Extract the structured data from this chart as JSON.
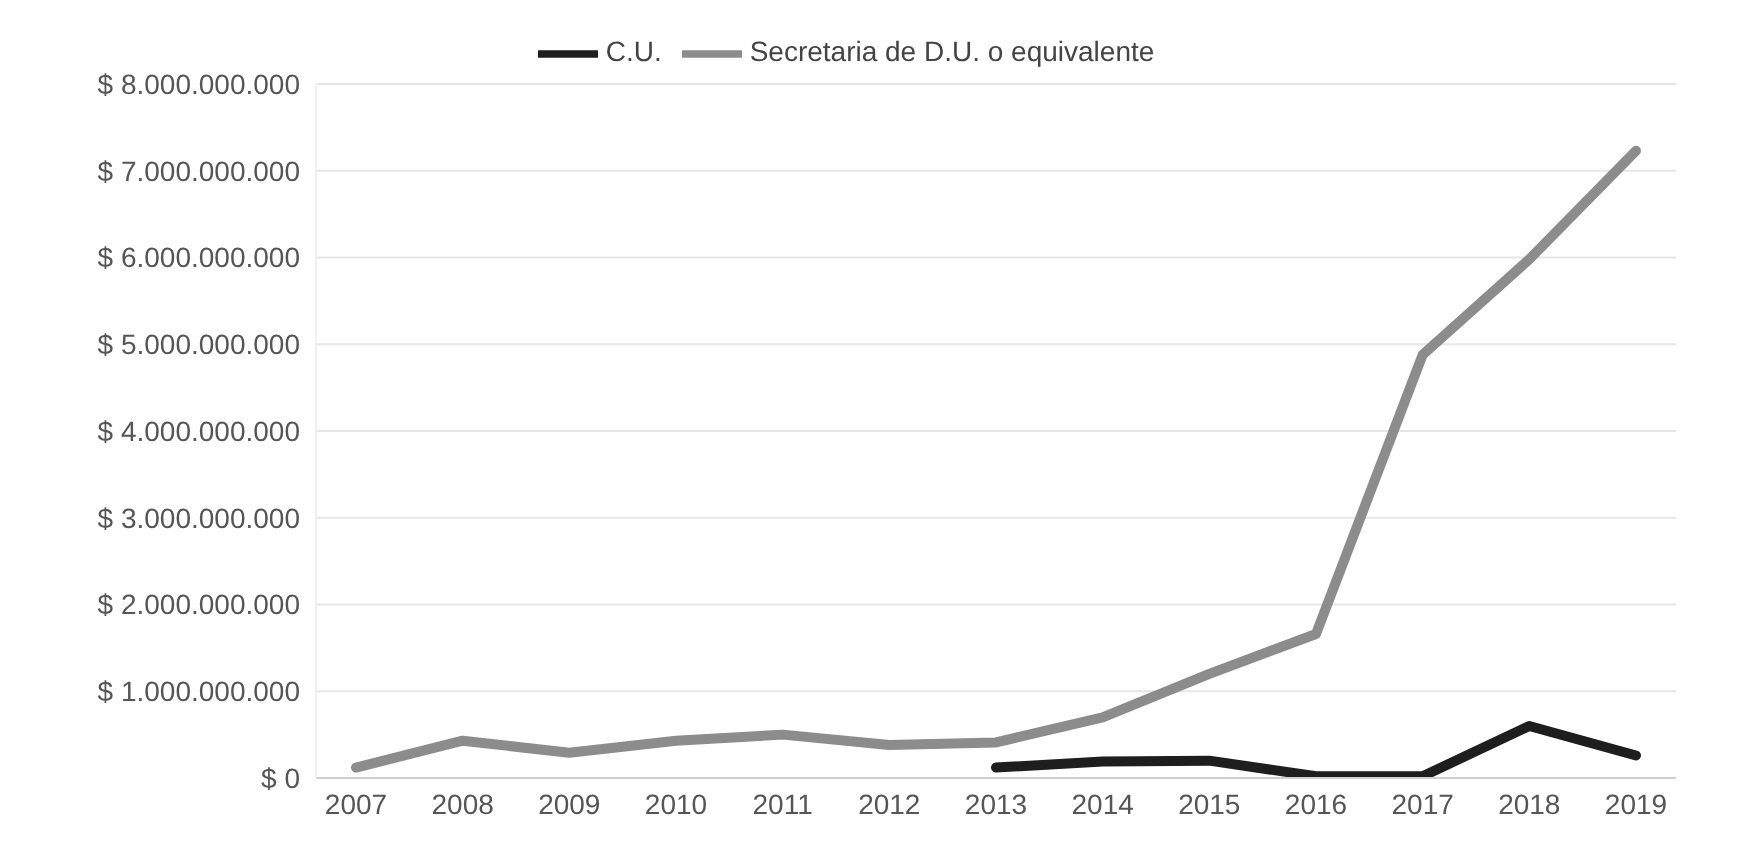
{
  "chart_data": {
    "type": "line",
    "categories": [
      "2007",
      "2008",
      "2009",
      "2010",
      "2011",
      "2012",
      "2013",
      "2014",
      "2015",
      "2016",
      "2017",
      "2018",
      "2019"
    ],
    "series": [
      {
        "name": "Secretaria de D.U. o equivalente",
        "color": "#8c8c8c",
        "values": [
          120000000,
          430000000,
          290000000,
          430000000,
          500000000,
          380000000,
          410000000,
          700000000,
          1200000000,
          1660000000,
          4880000000,
          5980000000,
          7230000000
        ]
      },
      {
        "name": "C.U.",
        "color": "#1e1e1e",
        "values": [
          null,
          null,
          null,
          null,
          null,
          null,
          120000000,
          190000000,
          200000000,
          20000000,
          20000000,
          600000000,
          260000000
        ]
      }
    ],
    "ylim": [
      0,
      8000000000
    ],
    "yticks": [
      {
        "value": 0,
        "label": "$ 0"
      },
      {
        "value": 1000000000,
        "label": "$ 1.000.000.000"
      },
      {
        "value": 2000000000,
        "label": "$ 2.000.000.000"
      },
      {
        "value": 3000000000,
        "label": "$ 3.000.000.000"
      },
      {
        "value": 4000000000,
        "label": "$ 4.000.000.000"
      },
      {
        "value": 5000000000,
        "label": "$ 5.000.000.000"
      },
      {
        "value": 6000000000,
        "label": "$ 6.000.000.000"
      },
      {
        "value": 7000000000,
        "label": "$ 7.000.000.000"
      },
      {
        "value": 8000000000,
        "label": "$ 8.000.000.000"
      }
    ],
    "grid": "y",
    "legend": "top",
    "marker": "none",
    "line_style": "solid"
  }
}
